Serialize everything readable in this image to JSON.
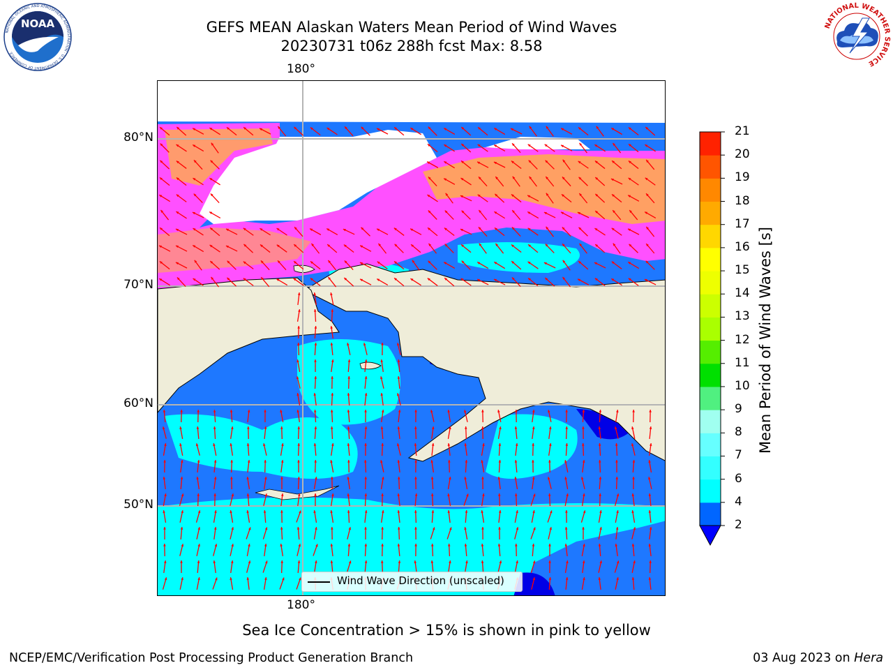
{
  "title_line1": "GEFS MEAN Alaskan Waters Mean Period of Wind Waves",
  "title_line2": "20230731 t06z 288h fcst   Max: 8.58",
  "logos": {
    "noaa": {
      "text": "NOAA",
      "ring_text": "NATIONAL OCEANIC AND ATMOSPHERIC ADMINISTRATION · U.S. DEPARTMENT OF COMMERCE"
    },
    "nws": {
      "ring_text": "NATIONAL WEATHER SERVICE"
    }
  },
  "map": {
    "lon_labels": {
      "top": "180°",
      "bottom": "180°"
    },
    "lat_labels": [
      {
        "text": "80°N",
        "lat": 80
      },
      {
        "text": "70°N",
        "lat": 70
      },
      {
        "text": "60°N",
        "lat": 60
      },
      {
        "text": "50°N",
        "lat": 50
      }
    ],
    "legend": {
      "label": "Wind Wave Direction (unscaled)"
    },
    "colors": {
      "land": "#efedd9",
      "ocean_low": "#1e78ff",
      "ocean_mid": "#00ffff",
      "ocean_deep": "#0000e6",
      "ice_pink": "#ff50ff",
      "ice_yellow": "#ffb43c",
      "arrow": "#ff0000",
      "grid": "#b4b4b4"
    }
  },
  "colorbar": {
    "label": "Mean Period of Wind Waves [s]",
    "ticks": [
      "2",
      "4",
      "6",
      "7",
      "8",
      "9",
      "10",
      "11",
      "12",
      "13",
      "14",
      "15",
      "16",
      "17",
      "18",
      "19",
      "20",
      "21"
    ],
    "colors": [
      "#0066ff",
      "#00ffff",
      "#33ffff",
      "#66ffff",
      "#a0fff0",
      "#50f080",
      "#00e000",
      "#55ee00",
      "#aaff00",
      "#ccff00",
      "#eeff00",
      "#ffff00",
      "#ffd700",
      "#ffaa00",
      "#ff8800",
      "#ff5500",
      "#ff2200",
      "#ff0000"
    ],
    "under_color": "#0000ff"
  },
  "footer_note": "Sea Ice Concentration > 15% is shown in pink to yellow",
  "credit": "NCEP/EMC/Verification Post Processing Product Generation Branch",
  "date_prefix": "03 Aug 2023 on ",
  "machine": "Hera"
}
